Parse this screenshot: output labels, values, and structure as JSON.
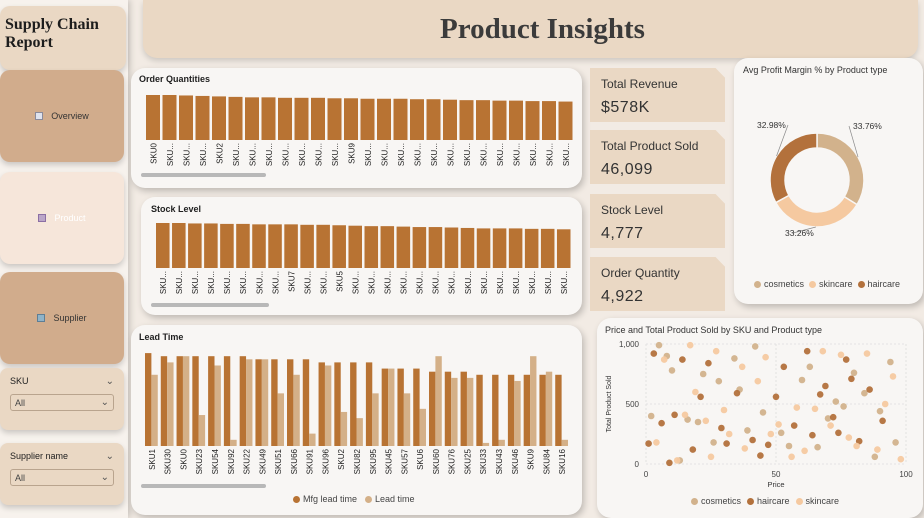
{
  "sidebar": {
    "title_line1": "Supply Chain",
    "title_line2": "Report",
    "nav": [
      {
        "label": "Overview",
        "icon": "report-icon"
      },
      {
        "label": "Product",
        "icon": "cart-icon"
      },
      {
        "label": "Supplier",
        "icon": "building-icon"
      }
    ],
    "slicers": [
      {
        "label": "SKU",
        "value": "All"
      },
      {
        "label": "Supplier name",
        "value": "All"
      }
    ]
  },
  "header": {
    "title": "Product Insights"
  },
  "colors": {
    "bar": "#b87333",
    "lead_light": "#d4b088",
    "cosmetics": "#d2b28c",
    "skincare": "#f5c9a0",
    "haircare": "#b3713c",
    "banner": "#ead8c4",
    "nav_active": "#d1ac8c"
  },
  "kpis": [
    {
      "label": "Total Revenue",
      "value": "$578K"
    },
    {
      "label": "Total Product Sold",
      "value": "46,099"
    },
    {
      "label": "Stock Level",
      "value": "4,777"
    },
    {
      "label": "Order Quantity",
      "value": "4,922"
    }
  ],
  "chart_data": [
    {
      "type": "bar",
      "title": "Order Quantities",
      "categories": [
        "SKU0",
        "SKU...",
        "SKU...",
        "SKU...",
        "SKU2",
        "SKU...",
        "SKU...",
        "SKU...",
        "SKU...",
        "SKU...",
        "SKU...",
        "SKU...",
        "SKU9",
        "SKU...",
        "SKU...",
        "SKU...",
        "SKU...",
        "SKU...",
        "SKU...",
        "SKU...",
        "SKU...",
        "SKU...",
        "SKU...",
        "SKU...",
        "SKU...",
        "SKU..."
      ],
      "values": [
        96,
        96,
        95,
        94,
        93,
        92,
        91,
        91,
        90,
        90,
        90,
        89,
        89,
        88,
        88,
        88,
        87,
        87,
        86,
        85,
        85,
        84,
        84,
        83,
        83,
        82
      ]
    },
    {
      "type": "bar",
      "title": "Stock Level",
      "categories": [
        "SKU...",
        "SKU...",
        "SKU...",
        "SKU...",
        "SKU...",
        "SKU...",
        "SKU...",
        "SKU...",
        "SKU7",
        "SKU...",
        "SKU...",
        "SKU5",
        "SKU...",
        "SKU...",
        "SKU...",
        "SKU...",
        "SKU...",
        "SKU...",
        "SKU...",
        "SKU...",
        "SKU...",
        "SKU...",
        "SKU...",
        "SKU...",
        "SKU...",
        "SKU..."
      ],
      "values": [
        100,
        100,
        99,
        99,
        98,
        98,
        97,
        97,
        97,
        96,
        96,
        95,
        94,
        93,
        93,
        92,
        91,
        91,
        90,
        89,
        88,
        88,
        88,
        87,
        87,
        86
      ]
    },
    {
      "type": "bar",
      "title": "Lead Time",
      "categories": [
        "SKU1",
        "SKU30",
        "SKU0",
        "SKU23",
        "SKU54",
        "SKU92",
        "SKU22",
        "SKU49",
        "SKU51",
        "SKU66",
        "SKU91",
        "SKU96",
        "SKU2",
        "SKU82",
        "SKU95",
        "SKU45",
        "SKU57",
        "SKU6",
        "SKU60",
        "SKU76",
        "SKU25",
        "SKU33",
        "SKU43",
        "SKU46",
        "SKU9",
        "SKU84",
        "SKU16"
      ],
      "series": [
        {
          "name": "Mfg lead time",
          "values": [
            30,
            29,
            29,
            29,
            29,
            29,
            29,
            28,
            28,
            28,
            28,
            27,
            27,
            27,
            27,
            25,
            25,
            25,
            24,
            24,
            24,
            23,
            23,
            23,
            23,
            23,
            23
          ]
        },
        {
          "name": "Lead time",
          "values": [
            23,
            27,
            29,
            10,
            26,
            2,
            28,
            28,
            17,
            23,
            4,
            26,
            11,
            9,
            17,
            25,
            17,
            12,
            29,
            22,
            22,
            1,
            2,
            21,
            29,
            24,
            2
          ]
        }
      ],
      "ylim": [
        0,
        31
      ]
    },
    {
      "type": "pie",
      "title": "Avg Profit Margin % by Product type",
      "categories": [
        "cosmetics",
        "skincare",
        "haircare"
      ],
      "values": [
        33.76,
        33.26,
        32.98
      ],
      "labels": [
        "33.76%",
        "33.26%",
        "32.98%"
      ]
    },
    {
      "type": "scatter",
      "title": "Price and Total Product Sold by SKU and Product type",
      "xlabel": "Price",
      "ylabel": "Total Product Sold",
      "xlim": [
        0,
        100
      ],
      "ylim": [
        0,
        1000
      ],
      "xticks": [
        "0",
        "50",
        "100"
      ],
      "yticks": [
        "0",
        "500",
        "1,000"
      ],
      "legend": [
        "cosmetics",
        "haircare",
        "skincare"
      ],
      "series": [
        {
          "name": "cosmetics",
          "points": [
            [
              2,
              400
            ],
            [
              5,
              990
            ],
            [
              8,
              900
            ],
            [
              10,
              780
            ],
            [
              13,
              30
            ],
            [
              16,
              370
            ],
            [
              20,
              350
            ],
            [
              22,
              750
            ],
            [
              26,
              180
            ],
            [
              28,
              690
            ],
            [
              34,
              880
            ],
            [
              36,
              620
            ],
            [
              39,
              280
            ],
            [
              42,
              980
            ],
            [
              45,
              430
            ],
            [
              52,
              260
            ],
            [
              55,
              150
            ],
            [
              60,
              700
            ],
            [
              63,
              810
            ],
            [
              66,
              140
            ],
            [
              70,
              380
            ],
            [
              73,
              520
            ],
            [
              76,
              480
            ],
            [
              80,
              760
            ],
            [
              84,
              590
            ],
            [
              88,
              60
            ],
            [
              90,
              440
            ],
            [
              94,
              850
            ],
            [
              96,
              180
            ]
          ]
        },
        {
          "name": "haircare",
          "points": [
            [
              1,
              170
            ],
            [
              3,
              920
            ],
            [
              6,
              340
            ],
            [
              9,
              10
            ],
            [
              11,
              410
            ],
            [
              14,
              870
            ],
            [
              18,
              120
            ],
            [
              21,
              560
            ],
            [
              24,
              840
            ],
            [
              29,
              300
            ],
            [
              31,
              170
            ],
            [
              35,
              590
            ],
            [
              41,
              200
            ],
            [
              44,
              70
            ],
            [
              47,
              160
            ],
            [
              50,
              560
            ],
            [
              53,
              810
            ],
            [
              57,
              320
            ],
            [
              62,
              940
            ],
            [
              64,
              240
            ],
            [
              67,
              580
            ],
            [
              69,
              650
            ],
            [
              72,
              390
            ],
            [
              74,
              260
            ],
            [
              77,
              870
            ],
            [
              79,
              710
            ],
            [
              82,
              190
            ],
            [
              86,
              620
            ],
            [
              91,
              360
            ]
          ]
        },
        {
          "name": "skincare",
          "points": [
            [
              4,
              180
            ],
            [
              7,
              870
            ],
            [
              12,
              30
            ],
            [
              15,
              410
            ],
            [
              17,
              990
            ],
            [
              19,
              600
            ],
            [
              23,
              360
            ],
            [
              25,
              60
            ],
            [
              27,
              940
            ],
            [
              30,
              450
            ],
            [
              32,
              250
            ],
            [
              37,
              810
            ],
            [
              38,
              130
            ],
            [
              43,
              690
            ],
            [
              46,
              890
            ],
            [
              48,
              250
            ],
            [
              51,
              330
            ],
            [
              56,
              60
            ],
            [
              58,
              470
            ],
            [
              61,
              110
            ],
            [
              65,
              460
            ],
            [
              68,
              940
            ],
            [
              71,
              320
            ],
            [
              75,
              910
            ],
            [
              78,
              220
            ],
            [
              81,
              150
            ],
            [
              85,
              920
            ],
            [
              89,
              120
            ],
            [
              92,
              500
            ],
            [
              95,
              730
            ],
            [
              98,
              40
            ]
          ]
        }
      ]
    }
  ]
}
